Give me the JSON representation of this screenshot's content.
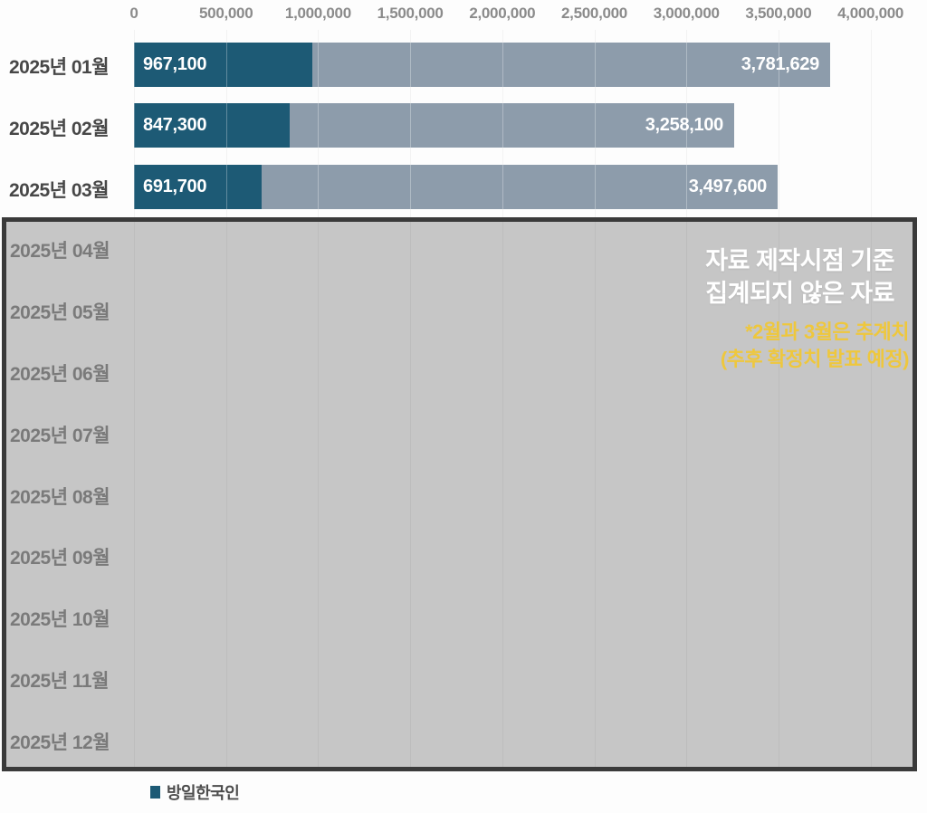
{
  "chart_data": {
    "type": "bar",
    "orientation": "horizontal",
    "axis": {
      "position": "top",
      "max": 4000000,
      "tick_values": [
        0,
        500000,
        1000000,
        1500000,
        2000000,
        2500000,
        3000000,
        3500000,
        4000000
      ],
      "tick_labels": [
        "0",
        "500,000",
        "1,000,000",
        "1,500,000",
        "2,000,000",
        "2,500,000",
        "3,000,000",
        "3,500,000",
        "4,000,000"
      ]
    },
    "categories": [
      "2025년 01월",
      "2025년 02월",
      "2025년 03월",
      "2025년 04월",
      "2025년 05월",
      "2025년 06월",
      "2025년 07월",
      "2025년 08월",
      "2025년 09월",
      "2025년 10월",
      "2025년 11월",
      "2025년 12월"
    ],
    "series": [
      {
        "name": "방일한국인",
        "color": "#1d5a75",
        "values": [
          967100,
          847300,
          691700,
          null,
          null,
          null,
          null,
          null,
          null,
          null,
          null,
          null
        ],
        "labels": [
          "967,100",
          "847,300",
          "691,700"
        ]
      },
      {
        "name": "",
        "color": "#8d9cab",
        "values": [
          3781629,
          3258100,
          3497600,
          null,
          null,
          null,
          null,
          null,
          null,
          null,
          null,
          null
        ],
        "labels": [
          "3,781,629",
          "3,258,100",
          "3,497,600"
        ]
      }
    ],
    "legend": {
      "position": "bottom",
      "items": [
        {
          "label": "방일한국인",
          "color": "#1d5a75"
        }
      ]
    },
    "grid": true
  },
  "overlay": {
    "title_lines": [
      "자료 제작시점 기준",
      "집계되지 않은 자료"
    ],
    "note_lines": [
      "*2월과 3월은 추계치",
      "(추후 확정치 발표 예정)"
    ]
  },
  "colors": {
    "background": "#fdfdfd",
    "bar_primary": "#1d5a75",
    "bar_secondary": "#8d9cab",
    "bar_label": "#ffffff",
    "overlay_bg": "#c6c6c6",
    "overlay_border": "#3a3a3a",
    "overlay_gridline": "#bdbdbd",
    "gridline": "#ececec",
    "axis_text": "#8b8b8b",
    "category_text": "#474747",
    "category_text_muted": "#7a7a7a",
    "annotation_white": "#ffffff",
    "annotation_yellow": "#eec73d",
    "legend_text": "#4d4d4d"
  }
}
